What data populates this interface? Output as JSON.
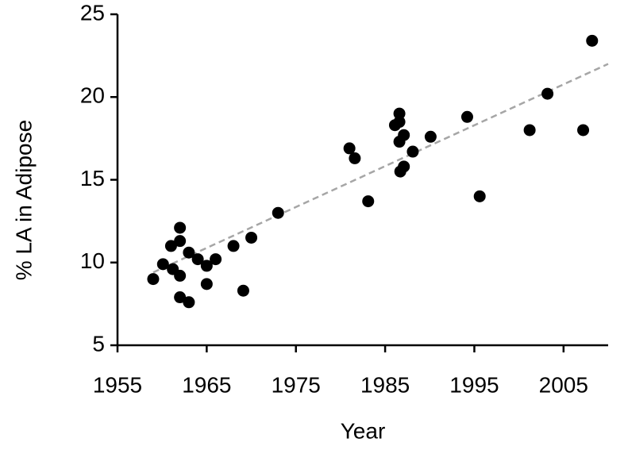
{
  "chart_data": {
    "type": "scatter",
    "x_label": "Year",
    "y_label": "% LA in Adipose",
    "series": [
      {
        "color": "#000000",
        "x": [
          1959.0,
          1960.1,
          1961.0,
          1961.2,
          1962.0,
          1962.0,
          1962.0,
          1962.0,
          1963.0,
          1963.0,
          1964.0,
          1965.0,
          1965.0,
          1966.0,
          1968.0,
          1969.1,
          1970.0,
          1973.0,
          1981.0,
          1981.6,
          1983.1,
          1986.1,
          1986.6,
          1986.6,
          1986.6,
          1986.7,
          1987.1,
          1987.1,
          1988.1,
          1990.1,
          1994.2,
          1995.6,
          2001.2,
          2003.2,
          2007.2,
          2008.2
        ],
        "values": [
          9.0,
          9.9,
          11.0,
          9.6,
          12.1,
          11.3,
          9.2,
          7.9,
          7.6,
          10.6,
          10.2,
          9.8,
          8.7,
          10.2,
          11.0,
          8.3,
          11.5,
          13.0,
          16.9,
          16.3,
          13.7,
          18.3,
          19.0,
          18.5,
          17.3,
          15.5,
          17.7,
          15.8,
          16.7,
          17.6,
          18.8,
          14.0,
          18.0,
          20.2,
          18.0,
          23.4
        ]
      }
    ],
    "trendline": {
      "color": "#a6a6a6",
      "x": [
        1959,
        2010
      ],
      "values": [
        9.4,
        22.0
      ]
    },
    "xlim": [
      1955,
      2010
    ],
    "xticks": [
      1955,
      1965,
      1975,
      1985,
      1995,
      2005
    ],
    "ylim": [
      5,
      25
    ],
    "yticks": [
      5,
      10,
      15,
      20,
      25
    ]
  }
}
